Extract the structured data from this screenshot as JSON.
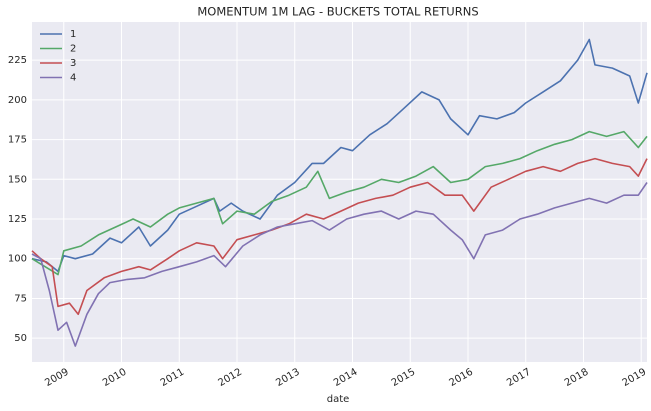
{
  "chart_data": {
    "type": "line",
    "title": "MOMENTUM 1M LAG - BUCKETS TOTAL RETURNS",
    "xlabel": "date",
    "xlim": [
      2008.45,
      2019.1
    ],
    "xticks": [
      2009,
      2010,
      2011,
      2012,
      2013,
      2014,
      2015,
      2016,
      2017,
      2018,
      2019
    ],
    "ylim": [
      35,
      249
    ],
    "yticks": [
      50,
      75,
      100,
      125,
      150,
      175,
      200,
      225
    ],
    "grid": true,
    "legend": "upper-left",
    "series": [
      {
        "name": "1",
        "color": "#4c72b0",
        "x": [
          2008.45,
          2008.7,
          2008.9,
          2009.0,
          2009.2,
          2009.5,
          2009.8,
          2010.0,
          2010.3,
          2010.5,
          2010.8,
          2011.0,
          2011.3,
          2011.6,
          2011.7,
          2011.9,
          2012.1,
          2012.4,
          2012.7,
          2013.0,
          2013.3,
          2013.5,
          2013.8,
          2014.0,
          2014.3,
          2014.6,
          2014.9,
          2015.2,
          2015.5,
          2015.7,
          2016.0,
          2016.2,
          2016.5,
          2016.8,
          2017.0,
          2017.3,
          2017.6,
          2017.9,
          2018.1,
          2018.2,
          2018.5,
          2018.8,
          2018.95,
          2019.1
        ],
        "values": [
          100,
          98,
          92,
          102,
          100,
          103,
          113,
          110,
          120,
          108,
          118,
          128,
          133,
          138,
          130,
          135,
          130,
          125,
          140,
          148,
          160,
          160,
          170,
          168,
          178,
          185,
          195,
          205,
          200,
          188,
          178,
          190,
          188,
          192,
          198,
          205,
          212,
          225,
          238,
          222,
          220,
          215,
          198,
          217
        ]
      },
      {
        "name": "2",
        "color": "#55a868",
        "x": [
          2008.45,
          2008.9,
          2009.0,
          2009.3,
          2009.6,
          2009.9,
          2010.2,
          2010.5,
          2010.8,
          2011.0,
          2011.3,
          2011.6,
          2011.75,
          2012.0,
          2012.3,
          2012.6,
          2012.9,
          2013.2,
          2013.4,
          2013.6,
          2013.9,
          2014.2,
          2014.5,
          2014.8,
          2015.1,
          2015.4,
          2015.7,
          2016.0,
          2016.3,
          2016.6,
          2016.9,
          2017.2,
          2017.5,
          2017.8,
          2018.1,
          2018.4,
          2018.7,
          2018.95,
          2019.1
        ],
        "values": [
          100,
          90,
          105,
          108,
          115,
          120,
          125,
          120,
          128,
          132,
          135,
          138,
          122,
          130,
          128,
          136,
          140,
          145,
          155,
          138,
          142,
          145,
          150,
          148,
          152,
          158,
          148,
          150,
          158,
          160,
          163,
          168,
          172,
          175,
          180,
          177,
          180,
          170,
          177
        ]
      },
      {
        "name": "3",
        "color": "#c44e52",
        "x": [
          2008.45,
          2008.6,
          2008.8,
          2008.9,
          2009.1,
          2009.25,
          2009.4,
          2009.7,
          2010.0,
          2010.3,
          2010.5,
          2010.8,
          2011.0,
          2011.3,
          2011.6,
          2011.75,
          2012.0,
          2012.3,
          2012.6,
          2012.9,
          2013.2,
          2013.5,
          2013.8,
          2014.1,
          2014.4,
          2014.7,
          2015.0,
          2015.3,
          2015.6,
          2015.9,
          2016.1,
          2016.4,
          2016.7,
          2017.0,
          2017.3,
          2017.6,
          2017.9,
          2018.2,
          2018.5,
          2018.8,
          2018.95,
          2019.1
        ],
        "values": [
          105,
          100,
          95,
          70,
          72,
          65,
          80,
          88,
          92,
          95,
          93,
          100,
          105,
          110,
          108,
          100,
          112,
          115,
          118,
          122,
          128,
          125,
          130,
          135,
          138,
          140,
          145,
          148,
          140,
          140,
          130,
          145,
          150,
          155,
          158,
          155,
          160,
          163,
          160,
          158,
          152,
          163
        ]
      },
      {
        "name": "4",
        "color": "#8172b2",
        "x": [
          2008.45,
          2008.6,
          2008.75,
          2008.9,
          2009.05,
          2009.2,
          2009.4,
          2009.6,
          2009.8,
          2010.1,
          2010.4,
          2010.7,
          2011.0,
          2011.3,
          2011.6,
          2011.8,
          2012.1,
          2012.4,
          2012.7,
          2013.0,
          2013.3,
          2013.6,
          2013.9,
          2014.2,
          2014.5,
          2014.8,
          2015.1,
          2015.4,
          2015.7,
          2015.9,
          2016.1,
          2016.3,
          2016.6,
          2016.9,
          2017.2,
          2017.5,
          2017.8,
          2018.1,
          2018.4,
          2018.7,
          2018.95,
          2019.1
        ],
        "values": [
          103,
          100,
          80,
          55,
          60,
          45,
          65,
          78,
          85,
          87,
          88,
          92,
          95,
          98,
          102,
          95,
          108,
          115,
          120,
          122,
          124,
          118,
          125,
          128,
          130,
          125,
          130,
          128,
          118,
          112,
          100,
          115,
          118,
          125,
          128,
          132,
          135,
          138,
          135,
          140,
          140,
          148
        ]
      }
    ]
  }
}
